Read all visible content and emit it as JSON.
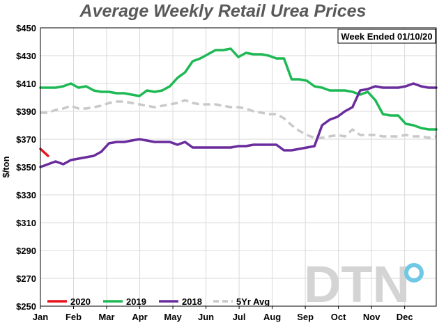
{
  "chart_data": {
    "type": "line",
    "title": "Average Weekly Retail Urea Prices",
    "ylabel": "$/ton",
    "annotation": "Week Ended 01/10/20",
    "watermark": "DTN",
    "ylim": [
      250,
      450
    ],
    "yticks": [
      "$450",
      "$430",
      "$410",
      "$390",
      "$370",
      "$350",
      "$330",
      "$310",
      "$290",
      "$270",
      "$250"
    ],
    "ytick_values": [
      450,
      430,
      410,
      390,
      370,
      350,
      330,
      310,
      290,
      270,
      250
    ],
    "xlim": [
      0,
      52
    ],
    "month_labels": [
      "Jan",
      "Feb",
      "Mar",
      "Apr",
      "May",
      "Jun",
      "Jul",
      "Aug",
      "Sep",
      "Oct",
      "Nov",
      "Dec"
    ],
    "month_weeks": [
      0,
      4.35,
      8.7,
      13.05,
      17.4,
      21.75,
      26.1,
      30.45,
      34.8,
      39.15,
      43.5,
      47.85
    ],
    "grid": true,
    "legend_position": "bottom",
    "series": [
      {
        "name": "2020",
        "color": "#e8141b",
        "dash": false,
        "x": [
          0,
          1
        ],
        "y": [
          363,
          358
        ]
      },
      {
        "name": "2019",
        "color": "#1db954",
        "dash": false,
        "x": [
          0,
          1,
          2,
          3,
          4,
          5,
          6,
          7,
          8,
          9,
          10,
          11,
          12,
          13,
          14,
          15,
          16,
          17,
          18,
          19,
          20,
          21,
          22,
          23,
          24,
          25,
          26,
          27,
          28,
          29,
          30,
          31,
          32,
          33,
          34,
          35,
          36,
          37,
          38,
          39,
          40,
          41,
          42,
          43,
          44,
          45,
          46,
          47,
          48,
          49,
          50,
          51,
          52
        ],
        "y": [
          407,
          407,
          407,
          408,
          410,
          407,
          408,
          405,
          404,
          404,
          403,
          403,
          402,
          401,
          405,
          404,
          405,
          408,
          414,
          418,
          426,
          428,
          431,
          434,
          434,
          435,
          429,
          432,
          431,
          431,
          430,
          428,
          428,
          413,
          413,
          412,
          408,
          407,
          405,
          405,
          405,
          404,
          402,
          404,
          398,
          388,
          387,
          387,
          381,
          380,
          378,
          377,
          377
        ]
      },
      {
        "name": "2018",
        "color": "#6a2c9c",
        "dash": false,
        "x": [
          0,
          1,
          2,
          3,
          4,
          5,
          6,
          7,
          8,
          9,
          10,
          11,
          12,
          13,
          14,
          15,
          16,
          17,
          18,
          19,
          20,
          21,
          22,
          23,
          24,
          25,
          26,
          27,
          28,
          29,
          30,
          31,
          32,
          33,
          34,
          35,
          36,
          37,
          38,
          39,
          40,
          41,
          42,
          43,
          44,
          45,
          46,
          47,
          48,
          49,
          50,
          51,
          52
        ],
        "y": [
          350,
          352,
          354,
          352,
          355,
          356,
          357,
          358,
          361,
          367,
          368,
          368,
          369,
          370,
          369,
          368,
          368,
          368,
          366,
          368,
          364,
          364,
          364,
          364,
          364,
          364,
          365,
          365,
          366,
          366,
          366,
          366,
          362,
          362,
          363,
          364,
          365,
          380,
          384,
          386,
          390,
          393,
          405,
          406,
          408,
          407,
          407,
          407,
          408,
          410,
          408,
          407,
          407
        ]
      },
      {
        "name": "5Yr Avg",
        "color": "#c9c9c9",
        "dash": true,
        "x": [
          0,
          1,
          2,
          3,
          4,
          5,
          6,
          7,
          8,
          9,
          10,
          11,
          12,
          13,
          14,
          15,
          16,
          17,
          18,
          19,
          20,
          21,
          22,
          23,
          24,
          25,
          26,
          27,
          28,
          29,
          30,
          31,
          32,
          33,
          34,
          35,
          36,
          37,
          38,
          39,
          40,
          41,
          42,
          43,
          44,
          45,
          46,
          47,
          48,
          49,
          50,
          51,
          52
        ],
        "y": [
          389,
          389,
          391,
          392,
          394,
          392,
          392,
          393,
          394,
          396,
          397,
          397,
          396,
          395,
          394,
          393,
          394,
          395,
          396,
          398,
          396,
          395,
          395,
          395,
          394,
          393,
          393,
          392,
          390,
          389,
          388,
          388,
          385,
          380,
          376,
          373,
          371,
          371,
          372,
          373,
          372,
          377,
          373,
          373,
          373,
          372,
          372,
          372,
          373,
          372,
          372,
          371,
          372
        ]
      }
    ]
  }
}
